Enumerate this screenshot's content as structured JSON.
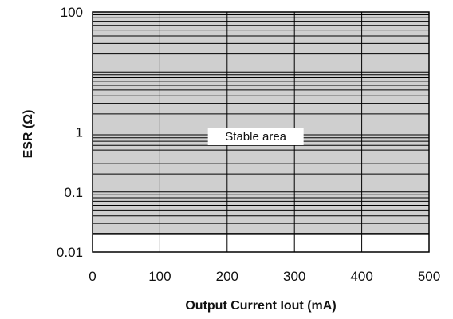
{
  "chart_data": {
    "type": "area",
    "title": "",
    "xlabel": "Output Current Iout (mA)",
    "ylabel": "ESR (Ω)",
    "xlim": [
      0,
      500
    ],
    "ylim": [
      0.01,
      100
    ],
    "yscale": "log",
    "x_ticks": [
      0,
      100,
      200,
      300,
      400,
      500
    ],
    "x_tick_labels": [
      "0",
      "100",
      "200",
      "300",
      "400",
      "500"
    ],
    "y_ticks": [
      0.01,
      0.1,
      1,
      100
    ],
    "y_tick_labels": [
      "0.01",
      "0.1",
      "1",
      "100"
    ],
    "grid": "on",
    "regions": [
      {
        "label": "Stable area",
        "x_range": [
          0,
          500
        ],
        "y_range": [
          0.02,
          100
        ],
        "fill": "#cfcfcf"
      }
    ],
    "annotations": [
      "Stable area"
    ]
  }
}
